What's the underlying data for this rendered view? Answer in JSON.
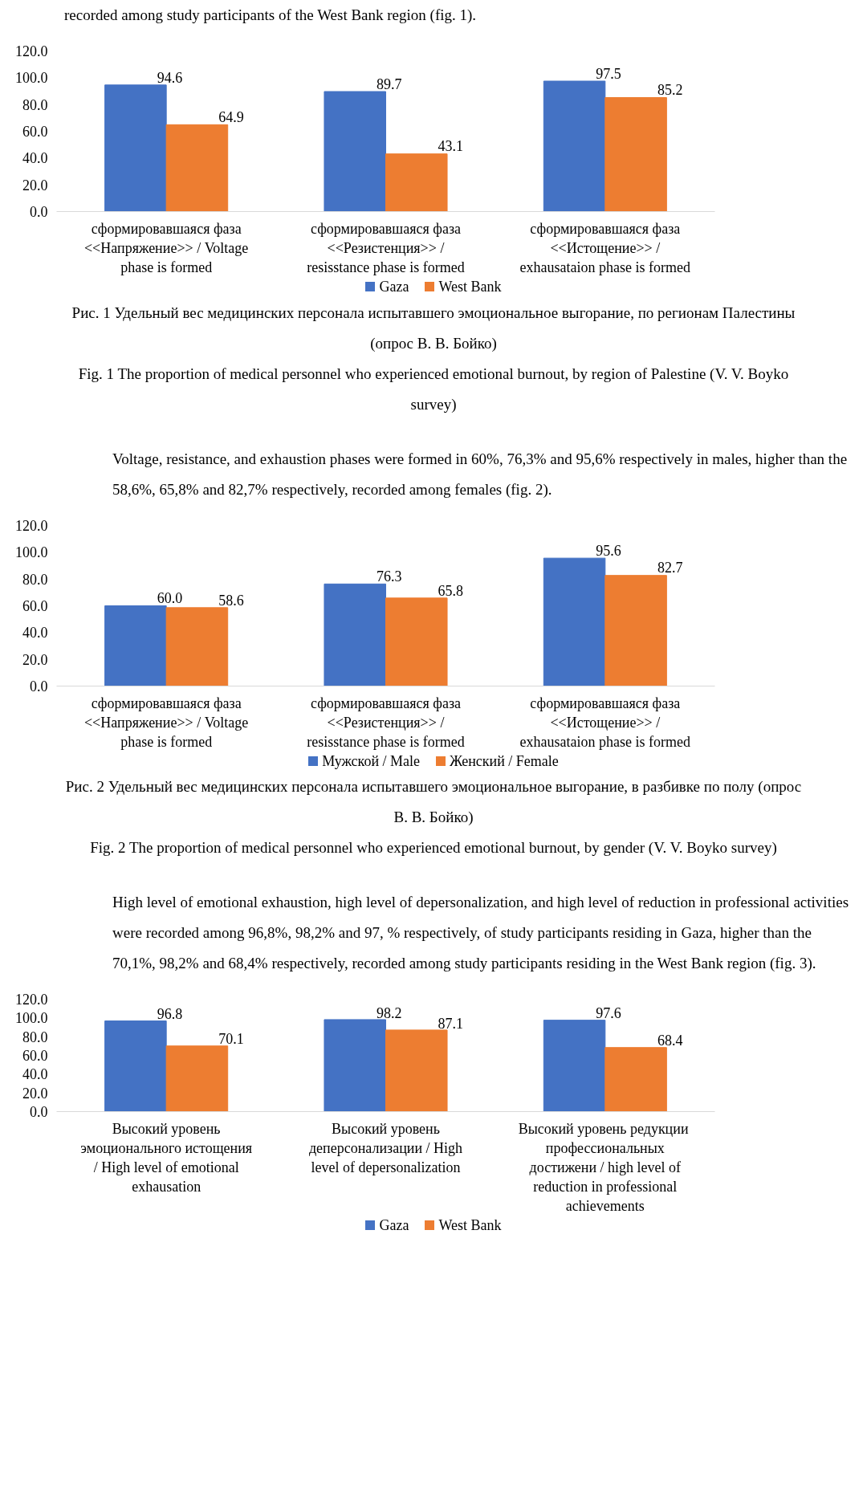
{
  "chart_data": [
    {
      "type": "bar",
      "subtitle": "recorded among study participants of the West Bank region (fig. 1).",
      "categories": [
        "сформировавшаяся фаза\n<<Напряжение>> / Voltage\nphase is formed",
        "сформировавшаяся фаза\n<<Резистенция>> /\nresisstance phase is formed",
        "сформировавшаяся фаза\n<<Истощение>> /\nexhausataion phase is formed"
      ],
      "series": [
        {
          "name": "Gaza",
          "color": "#4472c4",
          "values": [
            94.6,
            89.7,
            97.5
          ],
          "value_labels": [
            "94.6",
            "89.7",
            "97.5"
          ]
        },
        {
          "name": "West Bank",
          "color": "#ed7d31",
          "values": [
            64.9,
            43.1,
            85.2
          ],
          "value_labels": [
            "64.9",
            "43.1",
            "85.2"
          ]
        }
      ],
      "ylim": [
        0,
        120
      ],
      "yticks": [
        {
          "value": 0,
          "label": "0.0"
        },
        {
          "value": 20,
          "label": "20.0"
        },
        {
          "value": 40,
          "label": "40.0"
        },
        {
          "value": 60,
          "label": "60.0"
        },
        {
          "value": 80,
          "label": "80.0"
        },
        {
          "value": 100,
          "label": "100.0"
        },
        {
          "value": 120,
          "label": "120.0"
        }
      ],
      "legend": "bottom",
      "annotations": [
        "Рис. 1 Удельный вес медицинских персонала испытавшего эмоциональное выгорание, по регионам Палестины (опрос В. В. Бойко)",
        "Fig. 1 The proportion of medical personnel who experienced emotional burnout, by region of Palestine (V. V. Boyko survey)"
      ]
    },
    {
      "type": "bar",
      "subtitle": "Voltage, resistance, and exhaustion phases were formed in 60%, 76,3% and 95,6% respectively in males, higher than the 58,6%, 65,8% and 82,7% respectively, recorded among females (fig. 2).",
      "categories": [
        "сформировавшаяся фаза\n<<Напряжение>> / Voltage\nphase is formed",
        "сформировавшаяся фаза\n<<Резистенция>> /\nresisstance phase is formed",
        "сформировавшаяся фаза\n<<Истощение>> /\nexhausataion phase is formed"
      ],
      "series": [
        {
          "name": "Мужской / Male",
          "color": "#4472c4",
          "values": [
            60.0,
            76.3,
            95.6
          ],
          "value_labels": [
            "60.0",
            "76.3",
            "95.6"
          ]
        },
        {
          "name": "Женский / Female",
          "color": "#ed7d31",
          "values": [
            58.6,
            65.8,
            82.7
          ],
          "value_labels": [
            "58.6",
            "65.8",
            "82.7"
          ]
        }
      ],
      "ylim": [
        0,
        120
      ],
      "yticks": [
        {
          "value": 0,
          "label": "0.0"
        },
        {
          "value": 20,
          "label": "20.0"
        },
        {
          "value": 40,
          "label": "40.0"
        },
        {
          "value": 60,
          "label": "60.0"
        },
        {
          "value": 80,
          "label": "80.0"
        },
        {
          "value": 100,
          "label": "100.0"
        },
        {
          "value": 120,
          "label": "120.0"
        }
      ],
      "legend": "bottom",
      "annotations": [
        "Рис. 2 Удельный вес медицинских персонала испытавшего эмоциональное выгорание, в разбивке по полу (опрос В. В. Бойко)",
        "Fig. 2 The proportion of medical personnel who experienced emotional burnout, by gender (V. V. Boyko survey)"
      ]
    },
    {
      "type": "bar",
      "subtitle": "High level of emotional exhaustion, high level of depersonalization, and high level of reduction in professional activities were recorded among 96,8%, 98,2% and 97, % respectively, of study participants residing in Gaza, higher than the 70,1%, 98,2% and 68,4% respectively, recorded among study participants residing in the West Bank region (fig. 3).",
      "categories": [
        "Высокий уровень\nэмоционального истощения\n/ High level of emotional\nexhausation",
        "Высокий уровень\nдеперсонализации / High\nlevel of depersonalization",
        "Высокий уровень  редукции\nпрофессиональных\nдостижени / high level of\nreduction in professional\nachievements"
      ],
      "series": [
        {
          "name": "Gaza",
          "color": "#4472c4",
          "values": [
            96.8,
            98.2,
            97.6
          ],
          "value_labels": [
            "96.8",
            "98.2",
            "97.6"
          ]
        },
        {
          "name": "West Bank",
          "color": "#ed7d31",
          "values": [
            70.1,
            87.1,
            68.4
          ],
          "value_labels": [
            "70.1",
            "87.1",
            "68.4"
          ]
        }
      ],
      "ylim": [
        0,
        120
      ],
      "yticks": [
        {
          "value": 0,
          "label": "0.0"
        },
        {
          "value": 20,
          "label": "20.0"
        },
        {
          "value": 40,
          "label": "40.0"
        },
        {
          "value": 60,
          "label": "60.0"
        },
        {
          "value": 80,
          "label": "80.0"
        },
        {
          "value": 100,
          "label": "100.0"
        },
        {
          "value": 120,
          "label": "120.0"
        }
      ],
      "legend": "bottom"
    }
  ]
}
